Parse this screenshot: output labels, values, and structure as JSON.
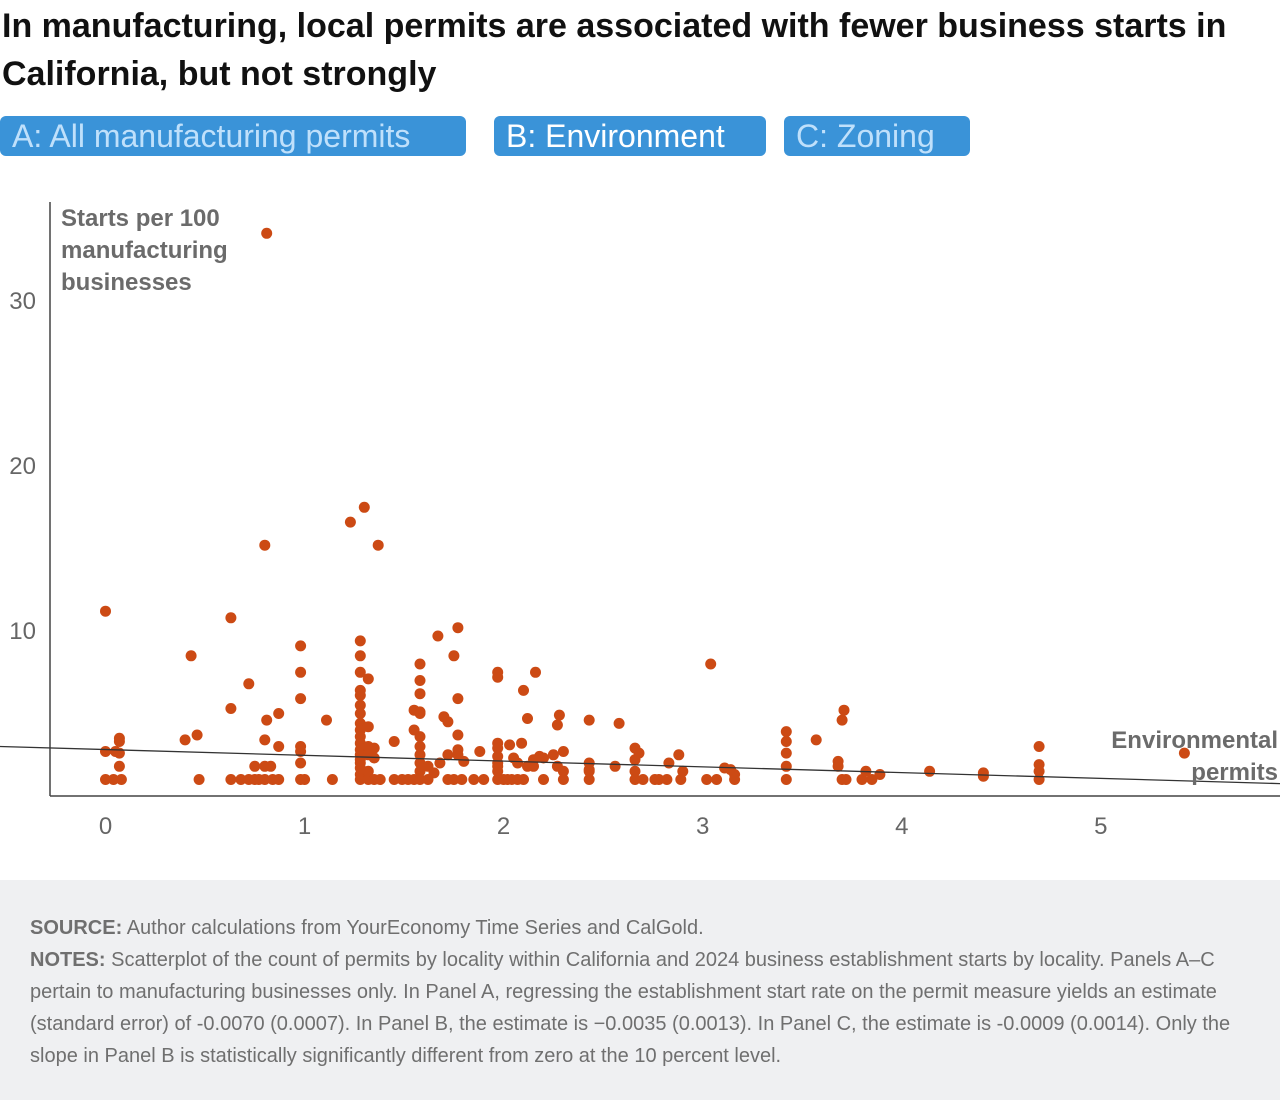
{
  "title": "In manufacturing, local permits are associated with fewer business starts in California, but not strongly",
  "tabs": [
    {
      "label": "A: All manufacturing permits",
      "active": false
    },
    {
      "label": "B: Environment",
      "active": true
    },
    {
      "label": "C: Zoning",
      "active": false
    }
  ],
  "colors": {
    "point": "#cc4a14",
    "tab": "#3a93d8",
    "line": "#333333"
  },
  "chart_data": {
    "type": "scatter",
    "ylabel_lines": [
      "Starts per 100",
      "manufacturing",
      "businesses"
    ],
    "xlabel_lines": [
      "Environmental",
      "permits"
    ],
    "xlim": [
      -0.53,
      5.9
    ],
    "ylim": [
      0,
      36
    ],
    "xticks": [
      0,
      1,
      2,
      3,
      4,
      5
    ],
    "yticks": [
      10,
      20,
      30
    ],
    "trendline": {
      "x": [
        -0.53,
        5.9
      ],
      "y": [
        3.0,
        0.75
      ]
    },
    "points": [
      [
        0,
        11.2
      ],
      [
        0,
        2.7
      ],
      [
        0.05,
        2.7
      ],
      [
        0.07,
        3.5
      ],
      [
        0.07,
        3.3
      ],
      [
        0.07,
        2.6
      ],
      [
        0.07,
        1.8
      ],
      [
        0,
        1.0
      ],
      [
        0.04,
        1.0
      ],
      [
        0.08,
        1.0
      ],
      [
        0.43,
        8.5
      ],
      [
        0.4,
        3.4
      ],
      [
        0.46,
        3.7
      ],
      [
        0.47,
        1.0
      ],
      [
        0.63,
        10.8
      ],
      [
        0.63,
        5.3
      ],
      [
        0.63,
        1.0
      ],
      [
        0.68,
        1.0
      ],
      [
        0.72,
        1.0
      ],
      [
        0.75,
        1.0
      ],
      [
        0.77,
        1.0
      ],
      [
        0.72,
        6.8
      ],
      [
        0.75,
        1.8
      ],
      [
        0.8,
        1.8
      ],
      [
        0.83,
        1.8
      ],
      [
        0.8,
        1.0
      ],
      [
        0.84,
        1.0
      ],
      [
        0.8,
        3.4
      ],
      [
        0.81,
        4.6
      ],
      [
        0.87,
        5.0
      ],
      [
        0.87,
        3.0
      ],
      [
        0.87,
        1.0
      ],
      [
        0.8,
        15.2
      ],
      [
        0.81,
        34.1
      ],
      [
        0.98,
        9.1
      ],
      [
        0.98,
        7.5
      ],
      [
        0.98,
        5.9
      ],
      [
        0.98,
        3.0
      ],
      [
        0.98,
        2.7
      ],
      [
        0.98,
        2.0
      ],
      [
        0.98,
        1.0
      ],
      [
        1.0,
        1.0
      ],
      [
        1.11,
        4.6
      ],
      [
        1.14,
        1.0
      ],
      [
        1.23,
        16.6
      ],
      [
        1.3,
        17.5
      ],
      [
        1.37,
        15.2
      ],
      [
        1.28,
        9.4
      ],
      [
        1.28,
        8.5
      ],
      [
        1.28,
        7.5
      ],
      [
        1.28,
        6.4
      ],
      [
        1.28,
        6.1
      ],
      [
        1.28,
        5.5
      ],
      [
        1.28,
        5.0
      ],
      [
        1.28,
        4.4
      ],
      [
        1.28,
        4.0
      ],
      [
        1.28,
        3.6
      ],
      [
        1.28,
        3.2
      ],
      [
        1.28,
        2.8
      ],
      [
        1.28,
        2.5
      ],
      [
        1.28,
        2.2
      ],
      [
        1.28,
        2.0
      ],
      [
        1.28,
        1.7
      ],
      [
        1.28,
        1.3
      ],
      [
        1.28,
        1.0
      ],
      [
        1.32,
        7.1
      ],
      [
        1.32,
        4.2
      ],
      [
        1.32,
        3.0
      ],
      [
        1.32,
        2.5
      ],
      [
        1.32,
        1.5
      ],
      [
        1.32,
        1.0
      ],
      [
        1.35,
        2.9
      ],
      [
        1.35,
        2.3
      ],
      [
        1.35,
        1.0
      ],
      [
        1.38,
        1.0
      ],
      [
        1.45,
        1.0
      ],
      [
        1.49,
        1.0
      ],
      [
        1.45,
        3.3
      ],
      [
        1.52,
        1.0
      ],
      [
        1.58,
        8.0
      ],
      [
        1.58,
        7.0
      ],
      [
        1.58,
        6.2
      ],
      [
        1.55,
        5.2
      ],
      [
        1.58,
        5.1
      ],
      [
        1.58,
        5.0
      ],
      [
        1.55,
        4.0
      ],
      [
        1.58,
        3.6
      ],
      [
        1.58,
        3.0
      ],
      [
        1.58,
        2.5
      ],
      [
        1.58,
        2.0
      ],
      [
        1.58,
        1.5
      ],
      [
        1.55,
        1.0
      ],
      [
        1.58,
        1.0
      ],
      [
        1.62,
        1.0
      ],
      [
        1.67,
        9.7
      ],
      [
        1.7,
        4.8
      ],
      [
        1.72,
        4.5
      ],
      [
        1.75,
        8.5
      ],
      [
        1.77,
        10.2
      ],
      [
        1.77,
        5.9
      ],
      [
        1.77,
        3.7
      ],
      [
        1.72,
        2.5
      ],
      [
        1.68,
        2.0
      ],
      [
        1.65,
        1.4
      ],
      [
        1.62,
        1.8
      ],
      [
        1.72,
        1.0
      ],
      [
        1.75,
        1.0
      ],
      [
        1.79,
        1.0
      ],
      [
        1.77,
        2.5
      ],
      [
        1.77,
        2.8
      ],
      [
        1.8,
        2.1
      ],
      [
        1.85,
        1.0
      ],
      [
        1.9,
        1.0
      ],
      [
        1.88,
        2.7
      ],
      [
        1.97,
        7.5
      ],
      [
        1.97,
        7.2
      ],
      [
        1.97,
        3.2
      ],
      [
        1.97,
        2.9
      ],
      [
        1.97,
        2.4
      ],
      [
        1.97,
        2.0
      ],
      [
        1.97,
        1.8
      ],
      [
        1.97,
        1.5
      ],
      [
        1.97,
        1.0
      ],
      [
        2.0,
        1.0
      ],
      [
        2.02,
        1.0
      ],
      [
        2.04,
        1.0
      ],
      [
        2.07,
        1.0
      ],
      [
        2.1,
        1.0
      ],
      [
        2.03,
        3.1
      ],
      [
        2.05,
        2.3
      ],
      [
        2.07,
        2.0
      ],
      [
        2.09,
        3.2
      ],
      [
        2.1,
        6.4
      ],
      [
        2.12,
        4.7
      ],
      [
        2.12,
        1.8
      ],
      [
        2.15,
        1.8
      ],
      [
        2.15,
        2.2
      ],
      [
        2.16,
        7.5
      ],
      [
        2.18,
        2.4
      ],
      [
        2.2,
        2.3
      ],
      [
        2.2,
        1.0
      ],
      [
        2.25,
        2.5
      ],
      [
        2.27,
        1.8
      ],
      [
        2.27,
        4.3
      ],
      [
        2.28,
        4.9
      ],
      [
        2.3,
        2.7
      ],
      [
        2.3,
        1.5
      ],
      [
        2.3,
        1.0
      ],
      [
        2.43,
        4.6
      ],
      [
        2.43,
        2.0
      ],
      [
        2.43,
        1.6
      ],
      [
        2.43,
        1.5
      ],
      [
        2.43,
        1.0
      ],
      [
        2.56,
        1.8
      ],
      [
        2.58,
        4.4
      ],
      [
        2.66,
        2.9
      ],
      [
        2.66,
        2.2
      ],
      [
        2.66,
        1.5
      ],
      [
        2.66,
        1.0
      ],
      [
        2.68,
        2.6
      ],
      [
        2.7,
        1.0
      ],
      [
        2.76,
        1.0
      ],
      [
        2.78,
        1.0
      ],
      [
        2.82,
        1.0
      ],
      [
        2.83,
        2.0
      ],
      [
        2.88,
        2.5
      ],
      [
        2.89,
        1.0
      ],
      [
        2.9,
        1.5
      ],
      [
        3.04,
        8.0
      ],
      [
        3.02,
        1.0
      ],
      [
        3.07,
        1.0
      ],
      [
        3.11,
        1.7
      ],
      [
        3.14,
        1.6
      ],
      [
        3.16,
        1.3
      ],
      [
        3.16,
        1.0
      ],
      [
        3.42,
        3.9
      ],
      [
        3.42,
        3.3
      ],
      [
        3.42,
        2.6
      ],
      [
        3.42,
        1.8
      ],
      [
        3.42,
        1.0
      ],
      [
        3.57,
        3.4
      ],
      [
        3.68,
        2.1
      ],
      [
        3.68,
        1.8
      ],
      [
        3.7,
        4.6
      ],
      [
        3.71,
        5.2
      ],
      [
        3.7,
        1.0
      ],
      [
        3.72,
        1.0
      ],
      [
        3.8,
        1.0
      ],
      [
        3.82,
        1.5
      ],
      [
        3.85,
        1.0
      ],
      [
        3.89,
        1.3
      ],
      [
        4.14,
        1.5
      ],
      [
        4.41,
        1.4
      ],
      [
        4.41,
        1.2
      ],
      [
        4.69,
        3.0
      ],
      [
        4.69,
        1.9
      ],
      [
        4.69,
        1.5
      ],
      [
        4.69,
        1.0
      ],
      [
        5.42,
        2.6
      ]
    ]
  },
  "footer": {
    "source_label": "SOURCE:",
    "source_text": " Author calculations from YourEconomy Time Series and CalGold.",
    "notes_label": "NOTES:",
    "notes_text": " Scatterplot of the count of permits by locality within California and 2024 business establishment starts by locality. Panels A–C pertain to manufacturing businesses only. In Panel A, regressing the establishment start rate on the permit measure yields an estimate (standard error) of -0.0070 (0.0007). In Panel B, the estimate is −0.0035 (0.0013). In Panel C, the estimate is -0.0009 (0.0014). Only the slope in Panel B is statistically significantly different from zero at the 10 percent level."
  }
}
